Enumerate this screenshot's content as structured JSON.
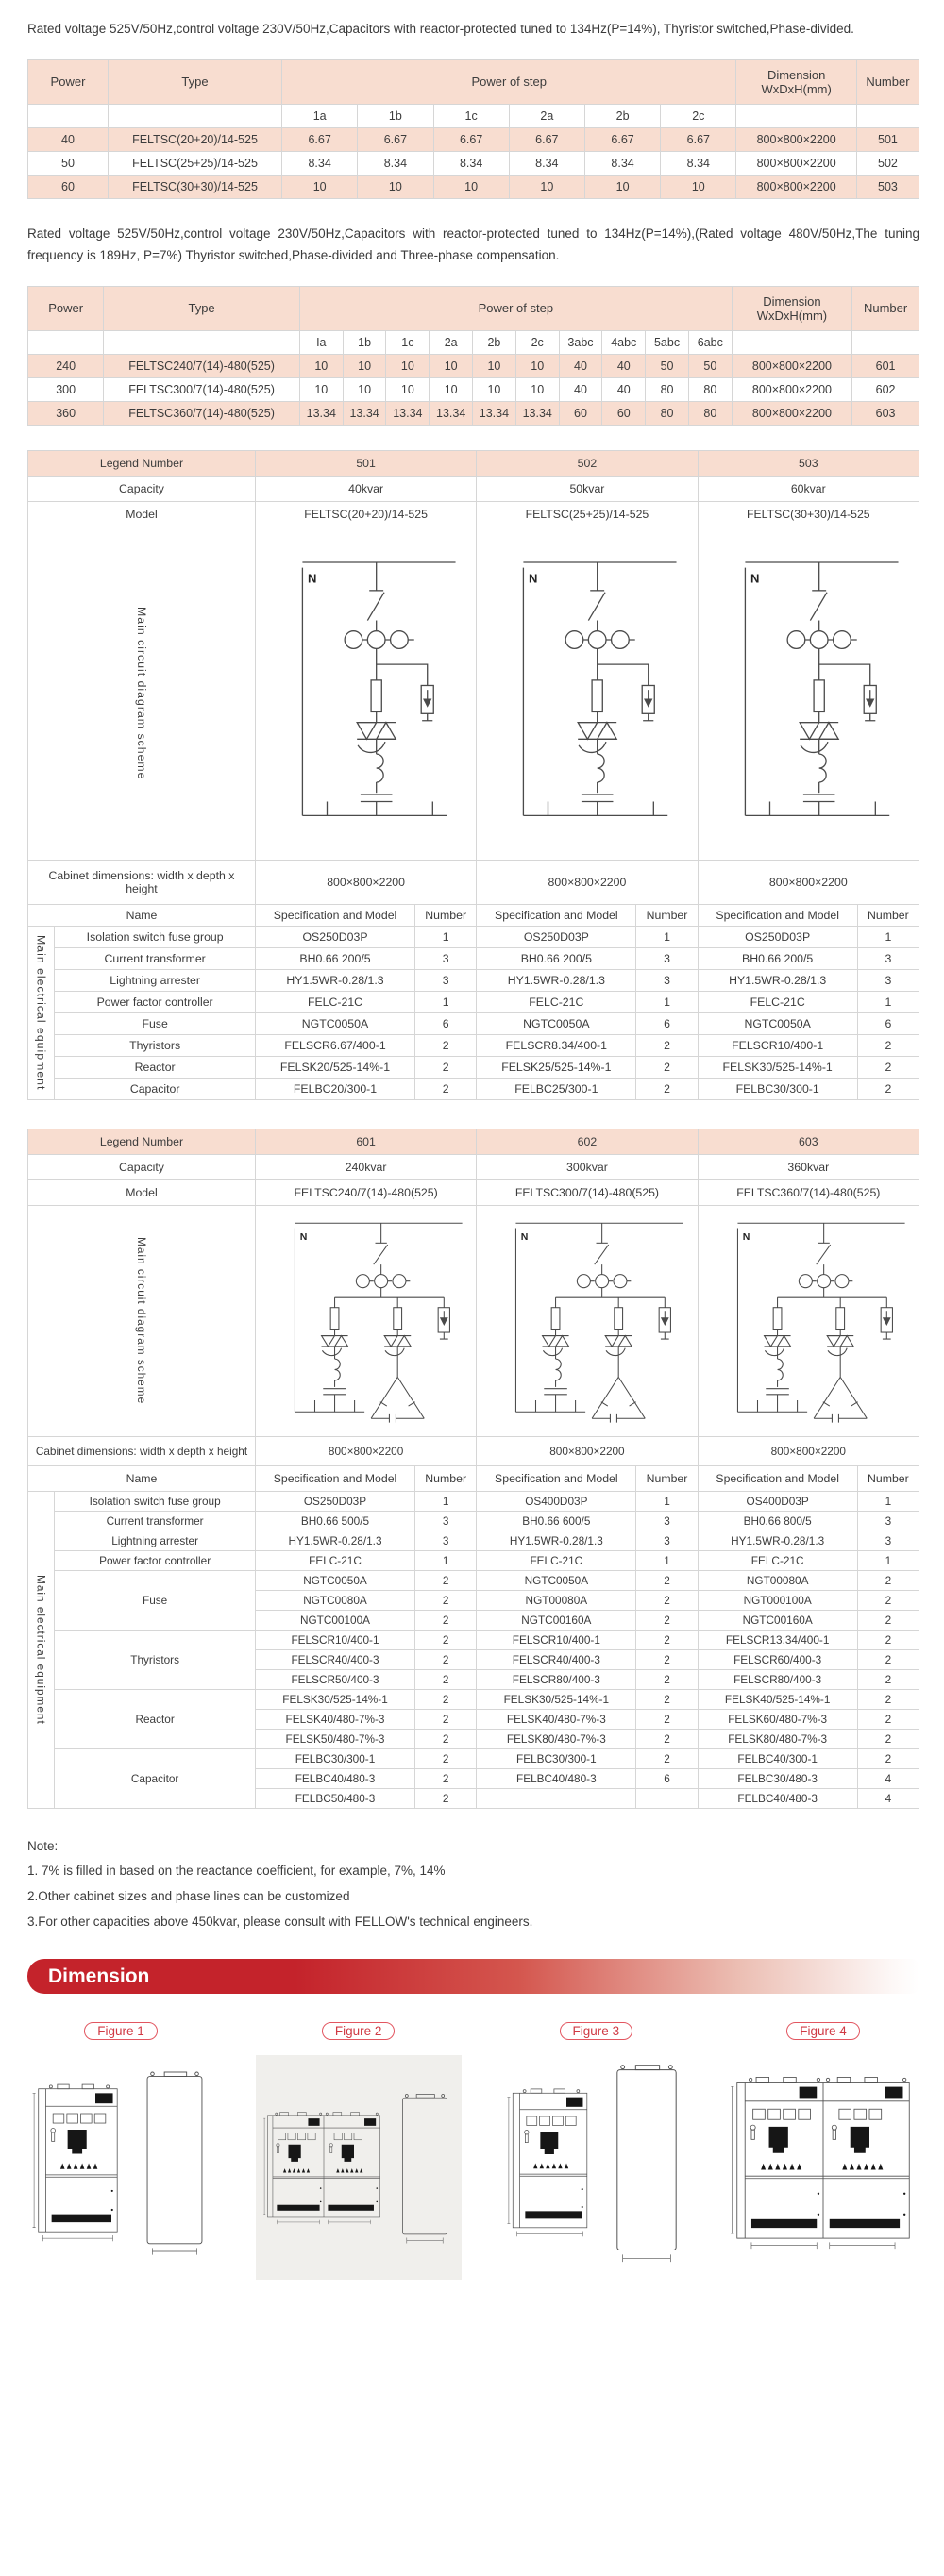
{
  "page": {
    "intro1": "Rated voltage 525V/50Hz,control voltage 230V/50Hz,Capacitors with reactor-protected tuned to 134Hz(P=14%), Thyristor switched,Phase-divided.",
    "intro2": "Rated voltage 525V/50Hz,control voltage 230V/50Hz,Capacitors with reactor-protected tuned to 134Hz(P=14%),(Rated voltage 480V/50Hz,The tuning frequency is 189Hz, P=7%) Thyristor switched,Phase-divided and Three-phase compensation."
  },
  "table1": {
    "col_power": "Power",
    "col_type": "Type",
    "col_step": "Power of step",
    "col_dimension1": "Dimension",
    "col_dimension2": "WxDxH(mm)",
    "col_number": "Number",
    "step_cols": [
      "1a",
      "1b",
      "1c",
      "2a",
      "2b",
      "2c"
    ],
    "rows": [
      {
        "power": "40",
        "type": "FELTSC(20+20)/14-525",
        "steps": [
          "6.67",
          "6.67",
          "6.67",
          "6.67",
          "6.67",
          "6.67"
        ],
        "dimension": "800×800×2200",
        "number": "501"
      },
      {
        "power": "50",
        "type": "FELTSC(25+25)/14-525",
        "steps": [
          "8.34",
          "8.34",
          "8.34",
          "8.34",
          "8.34",
          "8.34"
        ],
        "dimension": "800×800×2200",
        "number": "502"
      },
      {
        "power": "60",
        "type": "FELTSC(30+30)/14-525",
        "steps": [
          "10",
          "10",
          "10",
          "10",
          "10",
          "10"
        ],
        "dimension": "800×800×2200",
        "number": "503"
      }
    ]
  },
  "table2": {
    "col_power": "Power",
    "col_type": "Type",
    "col_step": "Power of step",
    "col_dimension1": "Dimension",
    "col_dimension2": "WxDxH(mm)",
    "col_number": "Number",
    "step_cols": [
      "Ia",
      "1b",
      "1c",
      "2a",
      "2b",
      "2c",
      "3abc",
      "4abc",
      "5abc",
      "6abc"
    ],
    "rows": [
      {
        "power": "240",
        "type": "FELTSC240/7(14)-480(525)",
        "steps": [
          "10",
          "10",
          "10",
          "10",
          "10",
          "10",
          "40",
          "40",
          "50",
          "50"
        ],
        "dimension": "800×800×2200",
        "number": "601"
      },
      {
        "power": "300",
        "type": "FELTSC300/7(14)-480(525)",
        "steps": [
          "10",
          "10",
          "10",
          "10",
          "10",
          "10",
          "40",
          "40",
          "80",
          "80"
        ],
        "dimension": "800×800×2200",
        "number": "602"
      },
      {
        "power": "360",
        "type": "FELTSC360/7(14)-480(525)",
        "steps": [
          "13.34",
          "13.34",
          "13.34",
          "13.34",
          "13.34",
          "13.34",
          "60",
          "60",
          "80",
          "80"
        ],
        "dimension": "800×800×2200",
        "number": "603"
      }
    ]
  },
  "table3": {
    "labels": {
      "legend": "Legend Number",
      "capacity": "Capacity",
      "model": "Model",
      "diagram": "Main circuit diagram scheme",
      "cabinet": "Cabinet dimensions: width x depth x height",
      "name": "Name",
      "spec": "Specification and Model",
      "number": "Number",
      "equipment": "Main electrical equipment"
    },
    "columns": [
      {
        "legend": "501",
        "capacity": "40kvar",
        "model": "FELTSC(20+20)/14-525",
        "cabinet": "800×800×2200"
      },
      {
        "legend": "502",
        "capacity": "50kvar",
        "model": "FELTSC(25+25)/14-525",
        "cabinet": "800×800×2200"
      },
      {
        "legend": "503",
        "capacity": "60kvar",
        "model": "FELTSC(30+30)/14-525",
        "cabinet": "800×800×2200"
      }
    ],
    "equipment_rows": [
      {
        "name": "Isolation switch fuse group",
        "cells": [
          {
            "spec": "OS250D03P",
            "num": "1"
          },
          {
            "spec": "OS250D03P",
            "num": "1"
          },
          {
            "spec": "OS250D03P",
            "num": "1"
          }
        ]
      },
      {
        "name": "Current transformer",
        "cells": [
          {
            "spec": "BH0.66 200/5",
            "num": "3"
          },
          {
            "spec": "BH0.66 200/5",
            "num": "3"
          },
          {
            "spec": "BH0.66 200/5",
            "num": "3"
          }
        ]
      },
      {
        "name": "Lightning arrester",
        "cells": [
          {
            "spec": "HY1.5WR-0.28/1.3",
            "num": "3"
          },
          {
            "spec": "HY1.5WR-0.28/1.3",
            "num": "3"
          },
          {
            "spec": "HY1.5WR-0.28/1.3",
            "num": "3"
          }
        ]
      },
      {
        "name": "Power factor controller",
        "cells": [
          {
            "spec": "FELC-21C",
            "num": "1"
          },
          {
            "spec": "FELC-21C",
            "num": "1"
          },
          {
            "spec": "FELC-21C",
            "num": "1"
          }
        ]
      },
      {
        "name": "Fuse",
        "cells": [
          {
            "spec": "NGTC0050A",
            "num": "6"
          },
          {
            "spec": "NGTC0050A",
            "num": "6"
          },
          {
            "spec": "NGTC0050A",
            "num": "6"
          }
        ]
      },
      {
        "name": "Thyristors",
        "cells": [
          {
            "spec": "FELSCR6.67/400-1",
            "num": "2"
          },
          {
            "spec": "FELSCR8.34/400-1",
            "num": "2"
          },
          {
            "spec": "FELSCR10/400-1",
            "num": "2"
          }
        ]
      },
      {
        "name": "Reactor",
        "cells": [
          {
            "spec": "FELSK20/525-14%-1",
            "num": "2"
          },
          {
            "spec": "FELSK25/525-14%-1",
            "num": "2"
          },
          {
            "spec": "FELSK30/525-14%-1",
            "num": "2"
          }
        ]
      },
      {
        "name": "Capacitor",
        "cells": [
          {
            "spec": "FELBC20/300-1",
            "num": "2"
          },
          {
            "spec": "FELBC25/300-1",
            "num": "2"
          },
          {
            "spec": "FELBC30/300-1",
            "num": "2"
          }
        ]
      }
    ]
  },
  "table4": {
    "labels": {
      "legend": "Legend Number",
      "capacity": "Capacity",
      "model": "Model",
      "diagram": "Main circuit diagram scheme",
      "cabinet": "Cabinet dimensions: width x depth x height",
      "name": "Name",
      "spec": "Specification and Model",
      "number": "Number",
      "equipment": "Main electrical equipment"
    },
    "columns": [
      {
        "legend": "601",
        "capacity": "240kvar",
        "model": "FELTSC240/7(14)-480(525)",
        "cabinet": "800×800×2200"
      },
      {
        "legend": "602",
        "capacity": "300kvar",
        "model": "FELTSC300/7(14)-480(525)",
        "cabinet": "800×800×2200"
      },
      {
        "legend": "603",
        "capacity": "360kvar",
        "model": "FELTSC360/7(14)-480(525)",
        "cabinet": "800×800×2200"
      }
    ],
    "equipment_groups": [
      {
        "name": "Isolation switch fuse group",
        "rows": [
          [
            {
              "spec": "OS250D03P",
              "num": "1"
            },
            {
              "spec": "OS400D03P",
              "num": "1"
            },
            {
              "spec": "OS400D03P",
              "num": "1"
            }
          ]
        ]
      },
      {
        "name": "Current transformer",
        "rows": [
          [
            {
              "spec": "BH0.66 500/5",
              "num": "3"
            },
            {
              "spec": "BH0.66 600/5",
              "num": "3"
            },
            {
              "spec": "BH0.66 800/5",
              "num": "3"
            }
          ]
        ]
      },
      {
        "name": "Lightning arrester",
        "rows": [
          [
            {
              "spec": "HY1.5WR-0.28/1.3",
              "num": "3"
            },
            {
              "spec": "HY1.5WR-0.28/1.3",
              "num": "3"
            },
            {
              "spec": "HY1.5WR-0.28/1.3",
              "num": "3"
            }
          ]
        ]
      },
      {
        "name": "Power factor controller",
        "rows": [
          [
            {
              "spec": "FELC-21C",
              "num": "1"
            },
            {
              "spec": "FELC-21C",
              "num": "1"
            },
            {
              "spec": "FELC-21C",
              "num": "1"
            }
          ]
        ]
      },
      {
        "name": "Fuse",
        "rows": [
          [
            {
              "spec": "NGTC0050A",
              "num": "2"
            },
            {
              "spec": "NGTC0050A",
              "num": "2"
            },
            {
              "spec": "NGT00080A",
              "num": "2"
            }
          ],
          [
            {
              "spec": "NGTC0080A",
              "num": "2"
            },
            {
              "spec": "NGT00080A",
              "num": "2"
            },
            {
              "spec": "NGT000100A",
              "num": "2"
            }
          ],
          [
            {
              "spec": "NGTC00100A",
              "num": "2"
            },
            {
              "spec": "NGTC00160A",
              "num": "2"
            },
            {
              "spec": "NGTC00160A",
              "num": "2"
            }
          ]
        ]
      },
      {
        "name": "Thyristors",
        "rows": [
          [
            {
              "spec": "FELSCR10/400-1",
              "num": "2"
            },
            {
              "spec": "FELSCR10/400-1",
              "num": "2"
            },
            {
              "spec": "FELSCR13.34/400-1",
              "num": "2"
            }
          ],
          [
            {
              "spec": "FELSCR40/400-3",
              "num": "2"
            },
            {
              "spec": "FELSCR40/400-3",
              "num": "2"
            },
            {
              "spec": "FELSCR60/400-3",
              "num": "2"
            }
          ],
          [
            {
              "spec": "FELSCR50/400-3",
              "num": "2"
            },
            {
              "spec": "FELSCR80/400-3",
              "num": "2"
            },
            {
              "spec": "FELSCR80/400-3",
              "num": "2"
            }
          ]
        ]
      },
      {
        "name": "Reactor",
        "rows": [
          [
            {
              "spec": "FELSK30/525-14%-1",
              "num": "2"
            },
            {
              "spec": "FELSK30/525-14%-1",
              "num": "2"
            },
            {
              "spec": "FELSK40/525-14%-1",
              "num": "2"
            }
          ],
          [
            {
              "spec": "FELSK40/480-7%-3",
              "num": "2"
            },
            {
              "spec": "FELSK40/480-7%-3",
              "num": "2"
            },
            {
              "spec": "FELSK60/480-7%-3",
              "num": "2"
            }
          ],
          [
            {
              "spec": "FELSK50/480-7%-3",
              "num": "2"
            },
            {
              "spec": "FELSK80/480-7%-3",
              "num": "2"
            },
            {
              "spec": "FELSK80/480-7%-3",
              "num": "2"
            }
          ]
        ]
      },
      {
        "name": "Capacitor",
        "rows": [
          [
            {
              "spec": "FELBC30/300-1",
              "num": "2"
            },
            {
              "spec": "FELBC30/300-1",
              "num": "2"
            },
            {
              "spec": "FELBC40/300-1",
              "num": "2"
            }
          ],
          [
            {
              "spec": "FELBC40/480-3",
              "num": "2"
            },
            {
              "spec": "FELBC40/480-3",
              "num": "6"
            },
            {
              "spec": "FELBC30/480-3",
              "num": "4"
            }
          ],
          [
            {
              "spec": "FELBC50/480-3",
              "num": "2"
            },
            {
              "spec": "",
              "num": ""
            },
            {
              "spec": "FELBC40/480-3",
              "num": "4"
            }
          ]
        ]
      }
    ]
  },
  "notes": {
    "title": "Note:",
    "items": [
      "1. 7% is filled in based on the reactance coefficient, for example, 7%, 14%",
      "2.Other cabinet sizes and phase lines can be customized",
      "3.For other capacities above 450kvar, please consult with FELLOW's technical engineers."
    ]
  },
  "banner": {
    "title": "Dimension"
  },
  "figures": [
    {
      "label": "Figure 1"
    },
    {
      "label": "Figure 2"
    },
    {
      "label": "Figure 3"
    },
    {
      "label": "Figure 4"
    }
  ],
  "diagram": {
    "n_label": "N"
  }
}
